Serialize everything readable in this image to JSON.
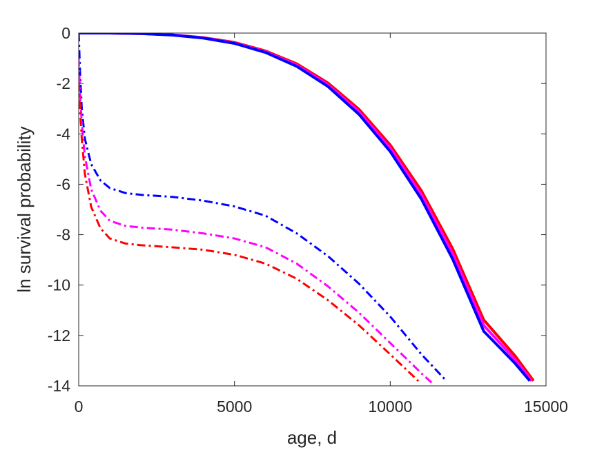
{
  "chart_data": {
    "type": "line",
    "title": "",
    "xlabel": "age, d",
    "ylabel": "ln survival probability",
    "xlim": [
      0,
      15000
    ],
    "ylim": [
      -14,
      0
    ],
    "xticks": [
      0,
      5000,
      10000,
      15000
    ],
    "yticks": [
      0,
      -2,
      -4,
      -6,
      -8,
      -10,
      -12,
      -14
    ],
    "xtick_labels": [
      "0",
      "5000",
      "10000",
      "15000"
    ],
    "ytick_labels": [
      "0",
      "-2",
      "-4",
      "-6",
      "-8",
      "-10",
      "-12",
      "-14"
    ],
    "grid": false,
    "legend": "none",
    "series": [
      {
        "color": "#ff0000",
        "style": "solid",
        "x": [
          0,
          1000,
          2000,
          3000,
          4000,
          5000,
          6000,
          7000,
          8000,
          9000,
          10000,
          11000,
          12000,
          13000,
          14000,
          14600
        ],
        "y": [
          0,
          0,
          -0.02,
          -0.07,
          -0.18,
          -0.37,
          -0.71,
          -1.22,
          -1.98,
          -3.03,
          -4.44,
          -6.26,
          -8.55,
          -11.38,
          -12.8,
          -13.8
        ]
      },
      {
        "color": "#ff00ff",
        "style": "solid",
        "x": [
          0,
          1000,
          2000,
          3000,
          4000,
          5000,
          6000,
          7000,
          8000,
          9000,
          10000,
          11000,
          12000,
          13000,
          14000,
          14540
        ],
        "y": [
          0,
          0,
          -0.02,
          -0.07,
          -0.19,
          -0.39,
          -0.74,
          -1.27,
          -2.05,
          -3.13,
          -4.57,
          -6.42,
          -8.75,
          -11.6,
          -12.95,
          -13.8
        ]
      },
      {
        "color": "#0000ff",
        "style": "solid",
        "x": [
          0,
          1000,
          2000,
          3000,
          4000,
          5000,
          6000,
          7000,
          8000,
          9000,
          10000,
          11000,
          12000,
          13000,
          14000,
          14480
        ],
        "y": [
          0,
          0,
          -0.02,
          -0.08,
          -0.2,
          -0.41,
          -0.77,
          -1.32,
          -2.12,
          -3.23,
          -4.7,
          -6.59,
          -8.96,
          -11.83,
          -13.1,
          -13.8
        ]
      },
      {
        "color": "#0000ff",
        "style": "dashdot",
        "x": [
          0,
          50,
          100,
          200,
          400,
          700,
          1000,
          1500,
          2000,
          3000,
          4000,
          5000,
          6000,
          7000,
          8000,
          9000,
          10000,
          11000,
          11800
        ],
        "y": [
          0,
          -1.8,
          -3.0,
          -4.2,
          -5.2,
          -5.85,
          -6.15,
          -6.35,
          -6.42,
          -6.5,
          -6.65,
          -6.88,
          -7.25,
          -7.95,
          -8.85,
          -9.95,
          -11.25,
          -12.75,
          -13.8
        ]
      },
      {
        "color": "#ff00ff",
        "style": "dashdot",
        "x": [
          0,
          50,
          100,
          200,
          400,
          700,
          1000,
          1500,
          2000,
          3000,
          4000,
          5000,
          6000,
          7000,
          8000,
          9000,
          10000,
          11000,
          11350
        ],
        "y": [
          -1.0,
          -2.6,
          -3.6,
          -4.9,
          -6.2,
          -7.05,
          -7.45,
          -7.65,
          -7.72,
          -7.8,
          -7.95,
          -8.15,
          -8.5,
          -9.15,
          -10.05,
          -11.1,
          -12.3,
          -13.5,
          -13.9
        ]
      },
      {
        "color": "#ff0000",
        "style": "dashdot",
        "x": [
          0,
          50,
          100,
          200,
          400,
          700,
          1000,
          1500,
          2000,
          3000,
          4000,
          5000,
          6000,
          7000,
          8000,
          9000,
          10000,
          10980
        ],
        "y": [
          -2.0,
          -3.2,
          -4.2,
          -5.6,
          -6.9,
          -7.75,
          -8.15,
          -8.35,
          -8.42,
          -8.5,
          -8.6,
          -8.8,
          -9.15,
          -9.75,
          -10.6,
          -11.6,
          -12.75,
          -13.9
        ]
      }
    ]
  }
}
